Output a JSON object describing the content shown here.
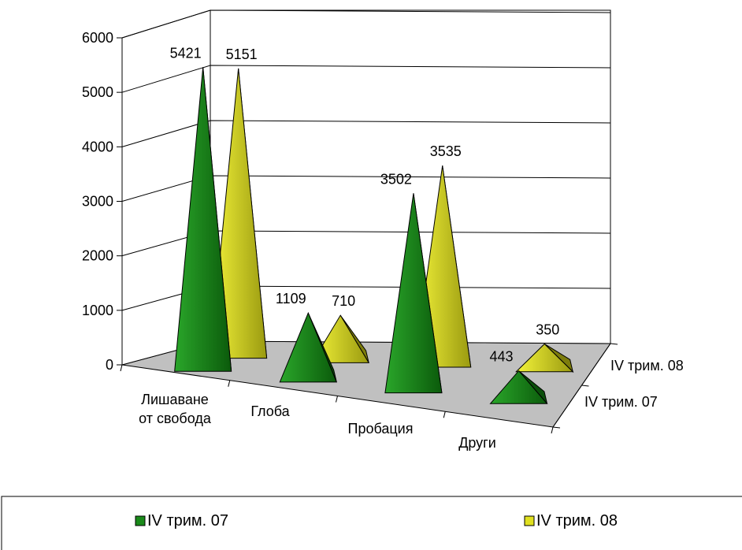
{
  "chart_data": {
    "type": "bar",
    "bar_shape": "pyramid-3d",
    "categories": [
      [
        "Лишаване",
        "от свобода"
      ],
      [
        "Глоба"
      ],
      [
        "Пробация"
      ],
      [
        "Други"
      ]
    ],
    "series": [
      {
        "name": "IV трим. 07",
        "values": [
          5421,
          1109,
          3502,
          443
        ],
        "color": "#1a8a1a"
      },
      {
        "name": "IV трим. 08",
        "values": [
          5151,
          710,
          3535,
          350
        ],
        "color": "#e0e020"
      }
    ],
    "y_ticks": [
      "0",
      "1000",
      "2000",
      "3000",
      "4000",
      "5000",
      "6000"
    ],
    "ylim": [
      0,
      6000
    ],
    "grid": true,
    "legend_position": "bottom"
  }
}
